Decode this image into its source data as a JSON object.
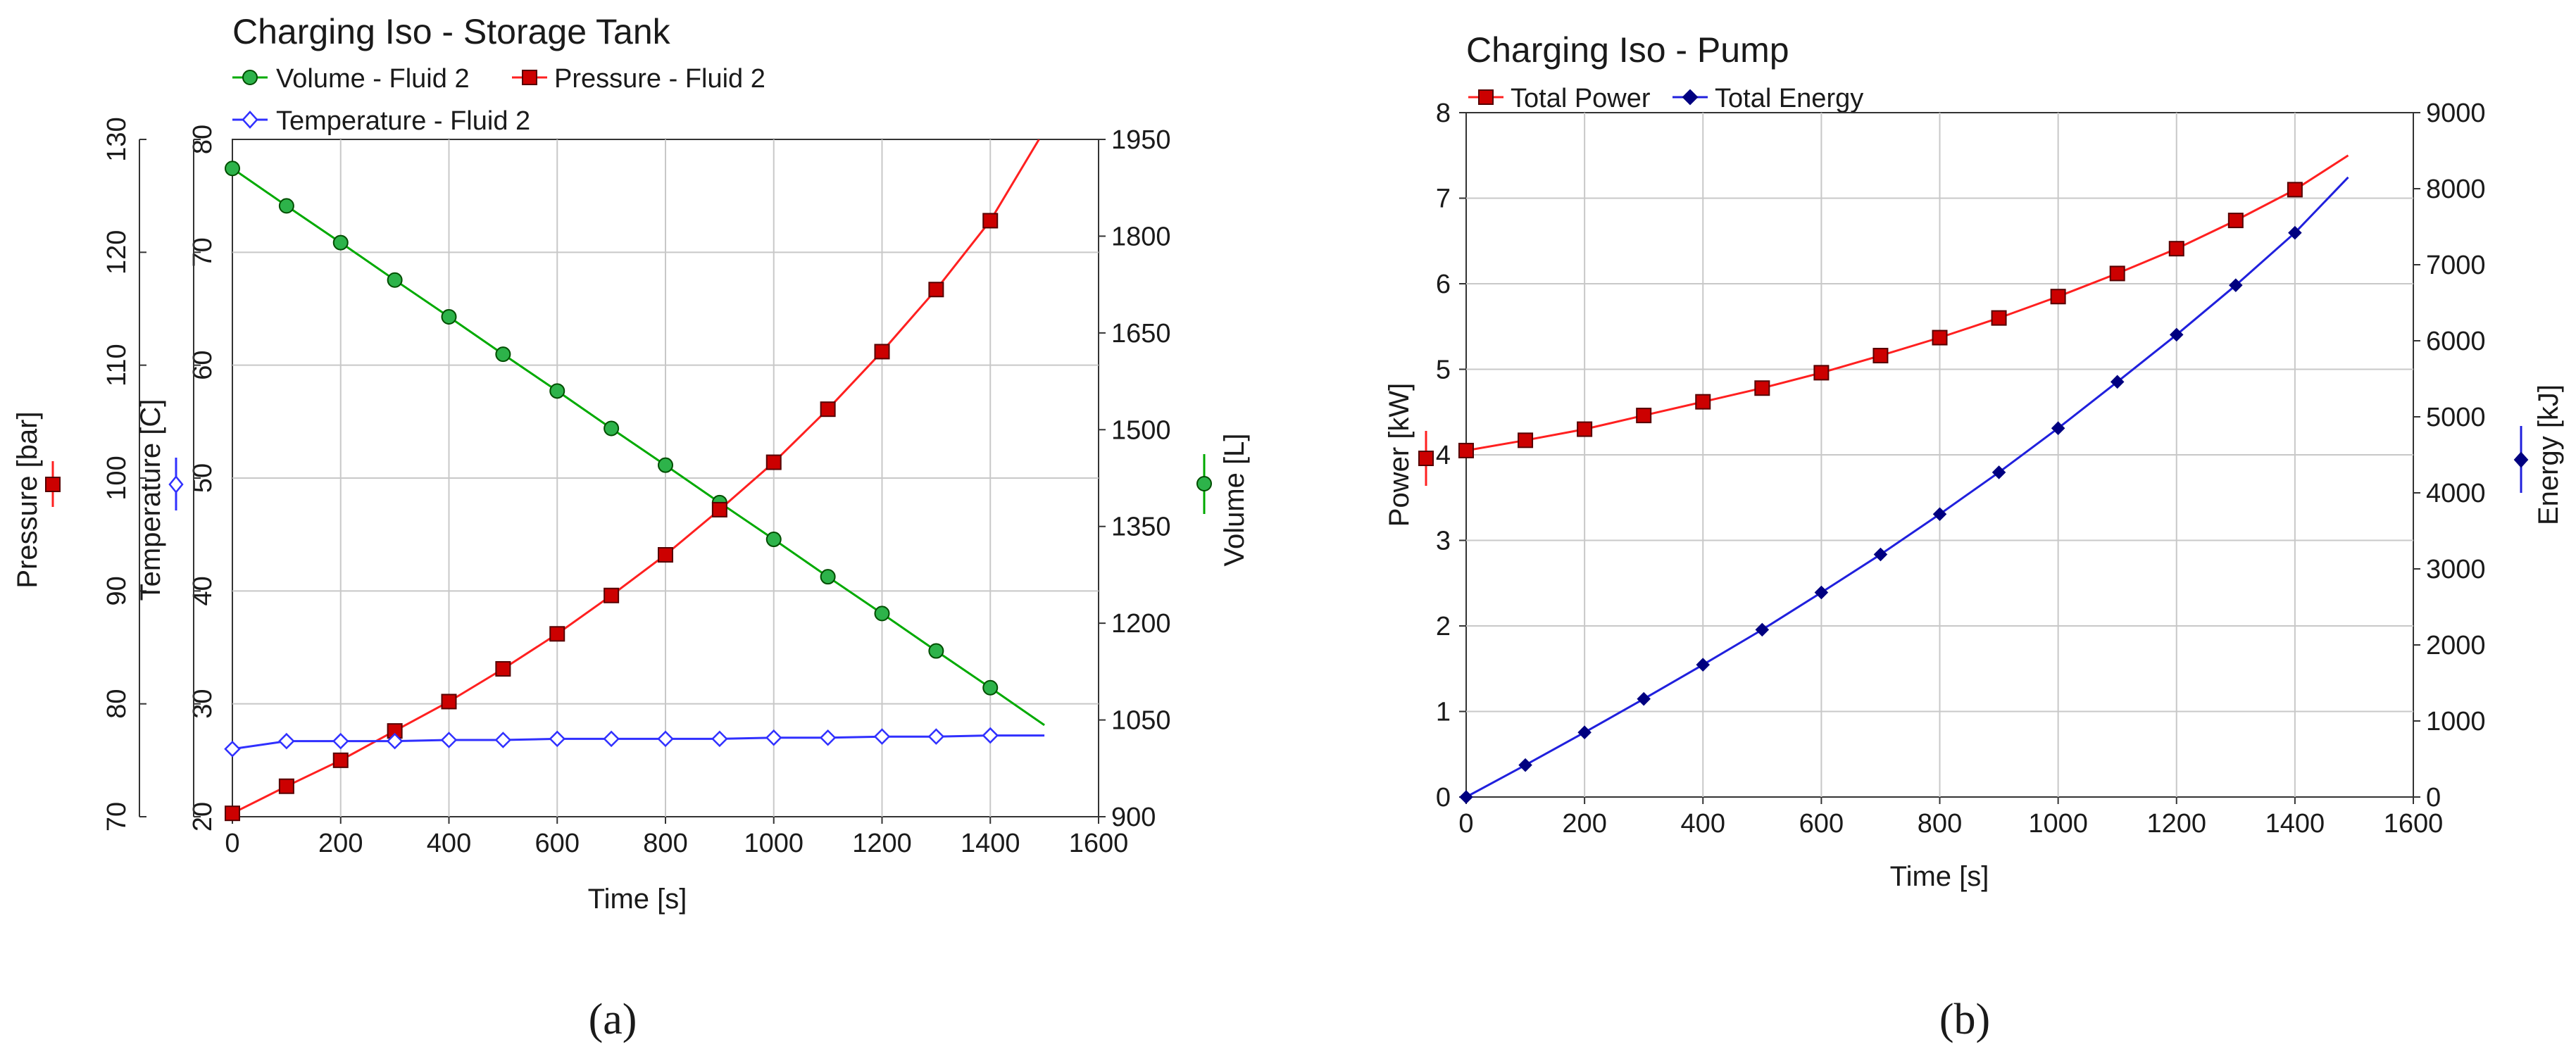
{
  "chart_data": [
    {
      "type": "line",
      "caption": "(a)",
      "title": "Charging Iso - Storage Tank",
      "xlabel": "Time [s]",
      "xlim": [
        0,
        1600
      ],
      "xticks": [
        0,
        200,
        400,
        600,
        800,
        1000,
        1200,
        1400,
        1600
      ],
      "axes": {
        "pressure": {
          "label": "Pressure [bar]",
          "range": [
            70,
            130
          ],
          "ticks": [
            70,
            80,
            90,
            100,
            110,
            120,
            130
          ],
          "side": "left-outer"
        },
        "temperature": {
          "label": "Temperature [C]",
          "range": [
            20,
            80
          ],
          "ticks": [
            20,
            30,
            40,
            50,
            60,
            70,
            80
          ],
          "side": "left-inner"
        },
        "volume": {
          "label": "Volume [L]",
          "range": [
            900,
            1950
          ],
          "ticks": [
            900,
            1050,
            1200,
            1350,
            1500,
            1650,
            1800,
            1950
          ],
          "side": "right"
        }
      },
      "legend": [
        "Volume - Fluid 2",
        "Pressure - Fluid 2",
        "Temperature - Fluid 2"
      ],
      "series": [
        {
          "name": "Volume - Fluid 2",
          "axis": "volume",
          "color": "#00aa00",
          "marker": "circle",
          "markerFill": "#2db34a",
          "x": [
            0,
            100,
            200,
            300,
            400,
            500,
            600,
            700,
            800,
            900,
            1000,
            1100,
            1200,
            1300,
            1400,
            1500
          ],
          "values": [
            1905,
            1847,
            1790,
            1732,
            1675,
            1617,
            1560,
            1502,
            1445,
            1387,
            1330,
            1272,
            1215,
            1157,
            1100,
            1042
          ]
        },
        {
          "name": "Pressure - Fluid 2",
          "axis": "pressure",
          "color": "#ff2020",
          "marker": "square",
          "markerFill": "#cc0000",
          "x": [
            0,
            100,
            200,
            300,
            400,
            500,
            600,
            700,
            800,
            900,
            1000,
            1100,
            1200,
            1300,
            1400,
            1490
          ],
          "values": [
            70.3,
            72.7,
            75.0,
            77.6,
            80.2,
            83.1,
            86.2,
            89.6,
            93.2,
            97.2,
            101.4,
            106.1,
            111.2,
            116.7,
            122.8,
            130
          ]
        },
        {
          "name": "Temperature - Fluid 2",
          "axis": "temperature",
          "color": "#3030ff",
          "marker": "diamond",
          "markerFill": "#ffffff",
          "x": [
            0,
            100,
            200,
            300,
            400,
            500,
            600,
            700,
            800,
            900,
            1000,
            1100,
            1200,
            1300,
            1400,
            1500
          ],
          "values": [
            26.0,
            26.7,
            26.7,
            26.7,
            26.8,
            26.8,
            26.9,
            26.9,
            26.9,
            26.9,
            27.0,
            27.0,
            27.1,
            27.1,
            27.2,
            27.2
          ]
        }
      ]
    },
    {
      "type": "line",
      "caption": "(b)",
      "title": "Charging Iso - Pump",
      "xlabel": "Time [s]",
      "xlim": [
        0,
        1600
      ],
      "xticks": [
        0,
        200,
        400,
        600,
        800,
        1000,
        1200,
        1400,
        1600
      ],
      "axes": {
        "power": {
          "label": "Power [kW]",
          "range": [
            0,
            8
          ],
          "ticks": [
            0,
            1,
            2,
            3,
            4,
            5,
            6,
            7,
            8
          ],
          "side": "left"
        },
        "energy": {
          "label": "Energy [kJ]",
          "range": [
            0,
            9000
          ],
          "ticks": [
            0,
            1000,
            2000,
            3000,
            4000,
            5000,
            6000,
            7000,
            8000,
            9000
          ],
          "side": "right"
        }
      },
      "legend": [
        "Total Power",
        "Total Energy"
      ],
      "series": [
        {
          "name": "Total Power",
          "axis": "power",
          "color": "#ff2020",
          "marker": "square",
          "markerFill": "#cc0000",
          "x": [
            0,
            100,
            200,
            300,
            400,
            500,
            600,
            700,
            800,
            900,
            1000,
            1100,
            1200,
            1300,
            1400,
            1490
          ],
          "values": [
            4.05,
            4.17,
            4.3,
            4.46,
            4.62,
            4.78,
            4.96,
            5.16,
            5.37,
            5.6,
            5.85,
            6.12,
            6.41,
            6.74,
            7.1,
            7.5
          ]
        },
        {
          "name": "Total Energy",
          "axis": "energy",
          "color": "#2020dd",
          "marker": "diamond",
          "markerFill": "#000080",
          "x": [
            0,
            100,
            200,
            300,
            400,
            500,
            600,
            700,
            800,
            900,
            1000,
            1100,
            1200,
            1300,
            1400,
            1490
          ],
          "values": [
            0,
            420,
            850,
            1290,
            1740,
            2200,
            2690,
            3190,
            3720,
            4270,
            4850,
            5460,
            6080,
            6730,
            7420,
            8150
          ]
        }
      ]
    }
  ]
}
